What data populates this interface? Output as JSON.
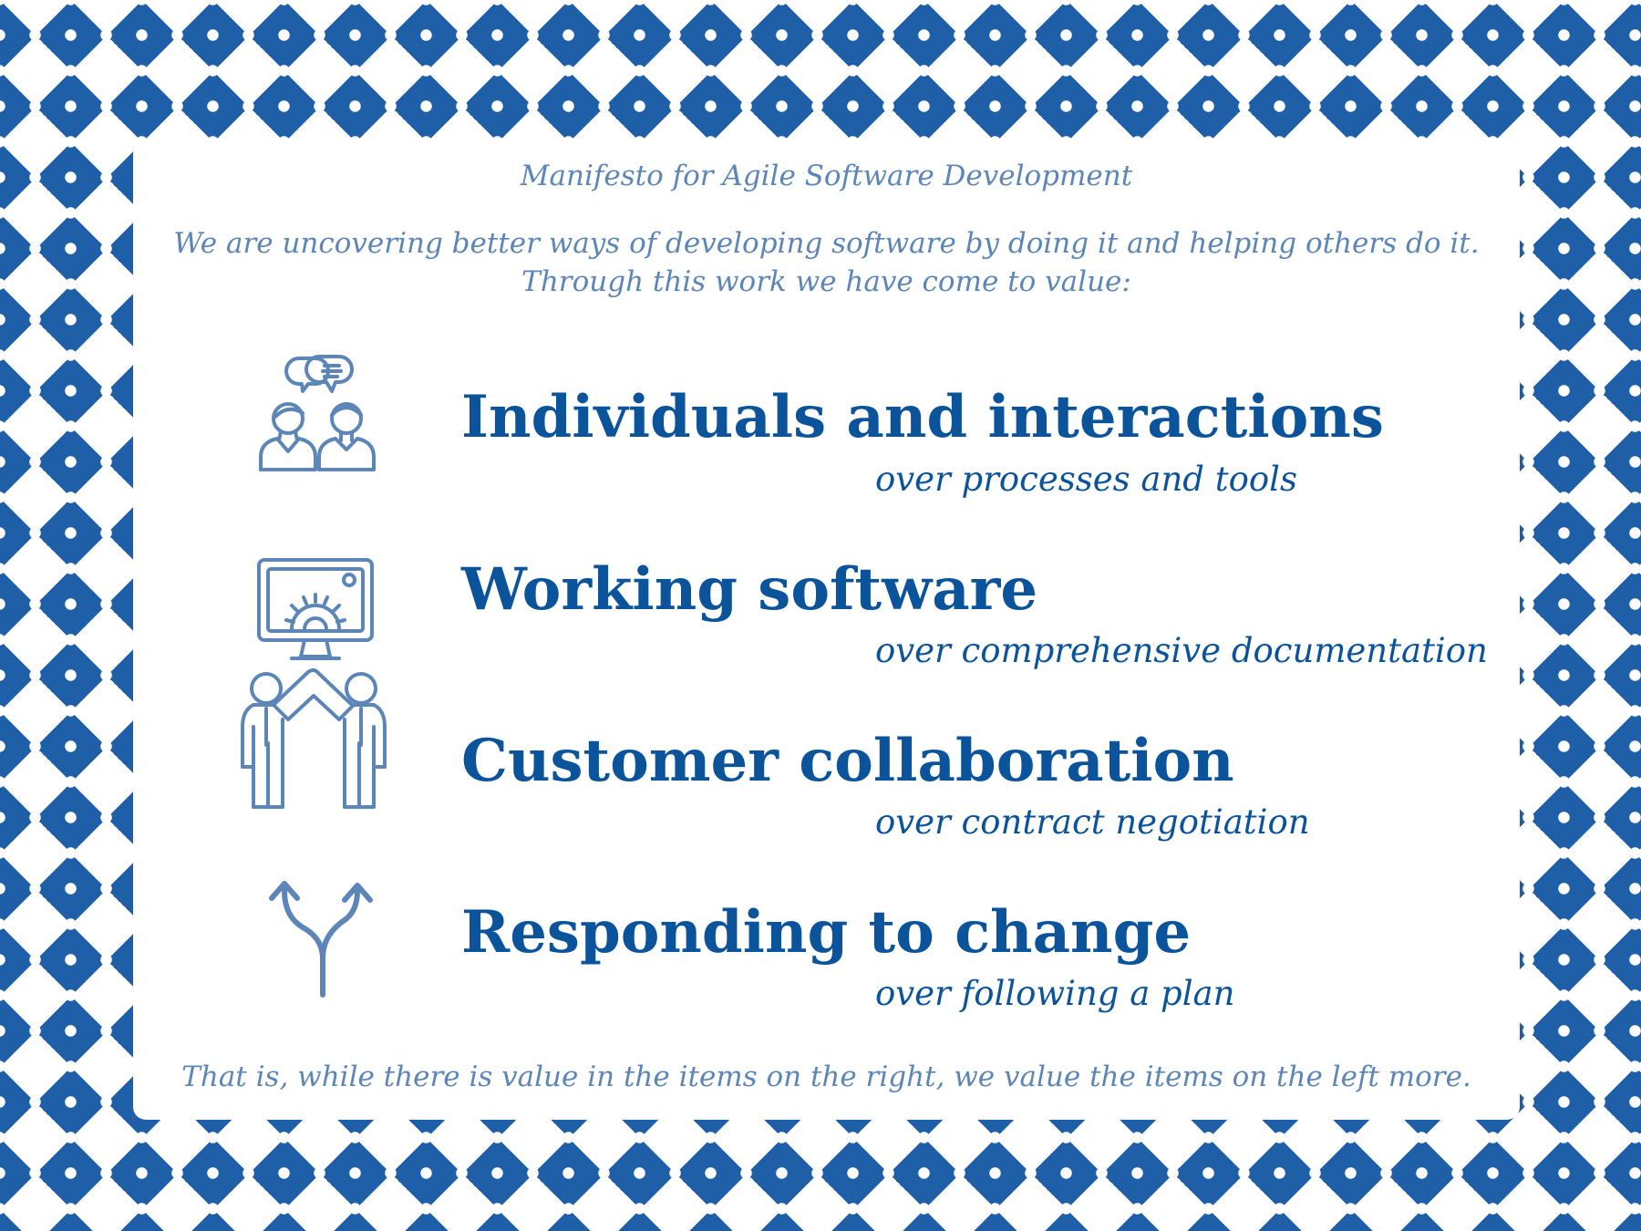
{
  "title": "Manifesto for Agile Software Development",
  "intro_line1": "We are uncovering better ways of developing software  by doing it and helping others do it.",
  "intro_line2": "Through this work we have come to value:",
  "values": [
    {
      "main": "Individuals and interactions",
      "over": "over processes and tools",
      "icon": "people-conversation-icon"
    },
    {
      "main": "Working software",
      "over": "over comprehensive documentation",
      "icon": "monitor-gear-icon"
    },
    {
      "main": "Customer collaboration",
      "over": "over contract negotiation",
      "icon": "two-people-high-five-icon"
    },
    {
      "main": "Responding to change",
      "over": "over following a plan",
      "icon": "split-arrows-icon"
    }
  ],
  "footer": "That is, while there is value in the items on the right, we value the items on the left more.",
  "colors": {
    "pattern": "#1f5fa8",
    "heading": "#0b539b",
    "subtle": "#5c86b7"
  }
}
